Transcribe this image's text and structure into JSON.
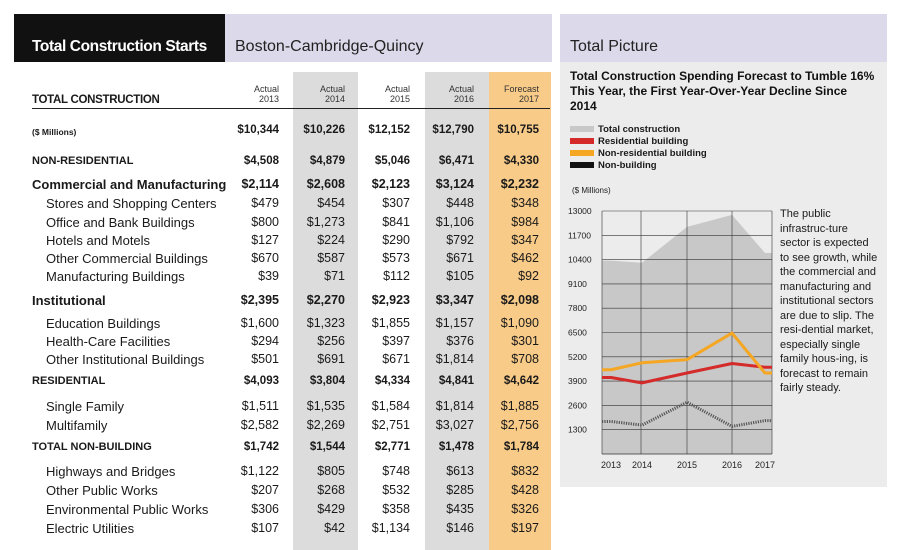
{
  "left_panel": {
    "title": "Total Construction Starts",
    "region": "Boston-Cambridge-Quincy",
    "years": [
      {
        "status": "Actual",
        "year": "2013"
      },
      {
        "status": "Actual",
        "year": "2014"
      },
      {
        "status": "Actual",
        "year": "2015"
      },
      {
        "status": "Actual",
        "year": "2016"
      },
      {
        "status": "Forecast",
        "year": "2017"
      }
    ],
    "total_header": "TOTAL CONSTRUCTION",
    "rows": [
      {
        "label": "($ Millions)",
        "values": [
          "$10,344",
          "$10,226",
          "$12,152",
          "$12,790",
          "$10,755"
        ],
        "style": "bold sm",
        "indent": false
      },
      {
        "label": "NON-RESIDENTIAL",
        "values": [
          "$4,508",
          "$4,879",
          "$5,046",
          "$6,471",
          "$4,330"
        ],
        "style": "bold sm",
        "indent": false
      },
      {
        "label": "Commercial and Manufacturing",
        "values": [
          "$2,114",
          "$2,608",
          "$2,123",
          "$3,124",
          "$2,232"
        ],
        "style": "bold",
        "indent": false
      },
      {
        "label": "Stores and Shopping Centers",
        "values": [
          "$479",
          "$454",
          "$307",
          "$448",
          "$348"
        ],
        "style": "",
        "indent": true
      },
      {
        "label": "Office and Bank Buildings",
        "values": [
          "$800",
          "$1,273",
          "$841",
          "$1,106",
          "$984"
        ],
        "style": "",
        "indent": true
      },
      {
        "label": "Hotels and Motels",
        "values": [
          "$127",
          "$224",
          "$290",
          "$792",
          "$347"
        ],
        "style": "",
        "indent": true
      },
      {
        "label": "Other Commercial Buildings",
        "values": [
          "$670",
          "$587",
          "$573",
          "$671",
          "$462"
        ],
        "style": "",
        "indent": true
      },
      {
        "label": "Manufacturing Buildings",
        "values": [
          "$39",
          "$71",
          "$112",
          "$105",
          "$92"
        ],
        "style": "",
        "indent": true
      },
      {
        "label": "Institutional",
        "values": [
          "$2,395",
          "$2,270",
          "$2,923",
          "$3,347",
          "$2,098"
        ],
        "style": "bold",
        "indent": false
      },
      {
        "label": "Education Buildings",
        "values": [
          "$1,600",
          "$1,323",
          "$1,855",
          "$1,157",
          "$1,090"
        ],
        "style": "",
        "indent": true
      },
      {
        "label": "Health-Care Facilities",
        "values": [
          "$294",
          "$256",
          "$397",
          "$376",
          "$301"
        ],
        "style": "",
        "indent": true
      },
      {
        "label": "Other Institutional Buildings",
        "values": [
          "$501",
          "$691",
          "$671",
          "$1,814",
          "$708"
        ],
        "style": "",
        "indent": true
      },
      {
        "label": "RESIDENTIAL",
        "values": [
          "$4,093",
          "$3,804",
          "$4,334",
          "$4,841",
          "$4,642"
        ],
        "style": "bold sm",
        "indent": false
      },
      {
        "label": "Single Family",
        "values": [
          "$1,511",
          "$1,535",
          "$1,584",
          "$1,814",
          "$1,885"
        ],
        "style": "",
        "indent": true
      },
      {
        "label": "Multifamily",
        "values": [
          "$2,582",
          "$2,269",
          "$2,751",
          "$3,027",
          "$2,756"
        ],
        "style": "",
        "indent": true
      },
      {
        "label": "TOTAL NON-BUILDING",
        "values": [
          "$1,742",
          "$1,544",
          "$2,771",
          "$1,478",
          "$1,784"
        ],
        "style": "bold sm",
        "indent": false
      },
      {
        "label": "Highways and Bridges",
        "values": [
          "$1,122",
          "$805",
          "$748",
          "$613",
          "$832"
        ],
        "style": "",
        "indent": true
      },
      {
        "label": "Other Public Works",
        "values": [
          "$207",
          "$268",
          "$532",
          "$285",
          "$428"
        ],
        "style": "",
        "indent": true
      },
      {
        "label": "Environmental Public Works",
        "values": [
          "$306",
          "$429",
          "$358",
          "$435",
          "$326"
        ],
        "style": "",
        "indent": true
      },
      {
        "label": "Electric Utilities",
        "values": [
          "$107",
          "$42",
          "$1,134",
          "$146",
          "$197"
        ],
        "style": "",
        "indent": true
      }
    ]
  },
  "right_panel": {
    "header": "Total Picture",
    "note": "The public infrastruc-ture sector is expected to see growth, while the commercial and manufacturing and institutional sectors are due to slip. The resi-dential market, especially single family hous-ing, is forecast to remain fairly steady."
  },
  "chart_data": {
    "type": "line",
    "title": "Total Construction Spending Forecast to Tumble 16% This Year, the First Year-Over-Year Decline Since 2014",
    "unit": "($ Millions)",
    "x": [
      "2013",
      "2014",
      "2015",
      "2016",
      "2017"
    ],
    "yticks": [
      "13000",
      "11700",
      "10400",
      "9100",
      "7800",
      "6500",
      "5200",
      "3900",
      "2600",
      "1300"
    ],
    "ylim": [
      0,
      13000
    ],
    "series": [
      {
        "name": "Total construction",
        "kind": "area",
        "color": "#c8c8c8",
        "values": [
          10344,
          10226,
          12152,
          12790,
          10755
        ]
      },
      {
        "name": "Residential building",
        "kind": "line",
        "color": "#d42a2a",
        "values": [
          4093,
          3804,
          4334,
          4841,
          4642
        ]
      },
      {
        "name": "Non-residential building",
        "kind": "line",
        "color": "#f5a623",
        "values": [
          4508,
          4879,
          5046,
          6471,
          4330
        ]
      },
      {
        "name": "Non-building",
        "kind": "dashed",
        "color": "#555555",
        "values": [
          1742,
          1544,
          2771,
          1478,
          1784
        ]
      }
    ]
  }
}
